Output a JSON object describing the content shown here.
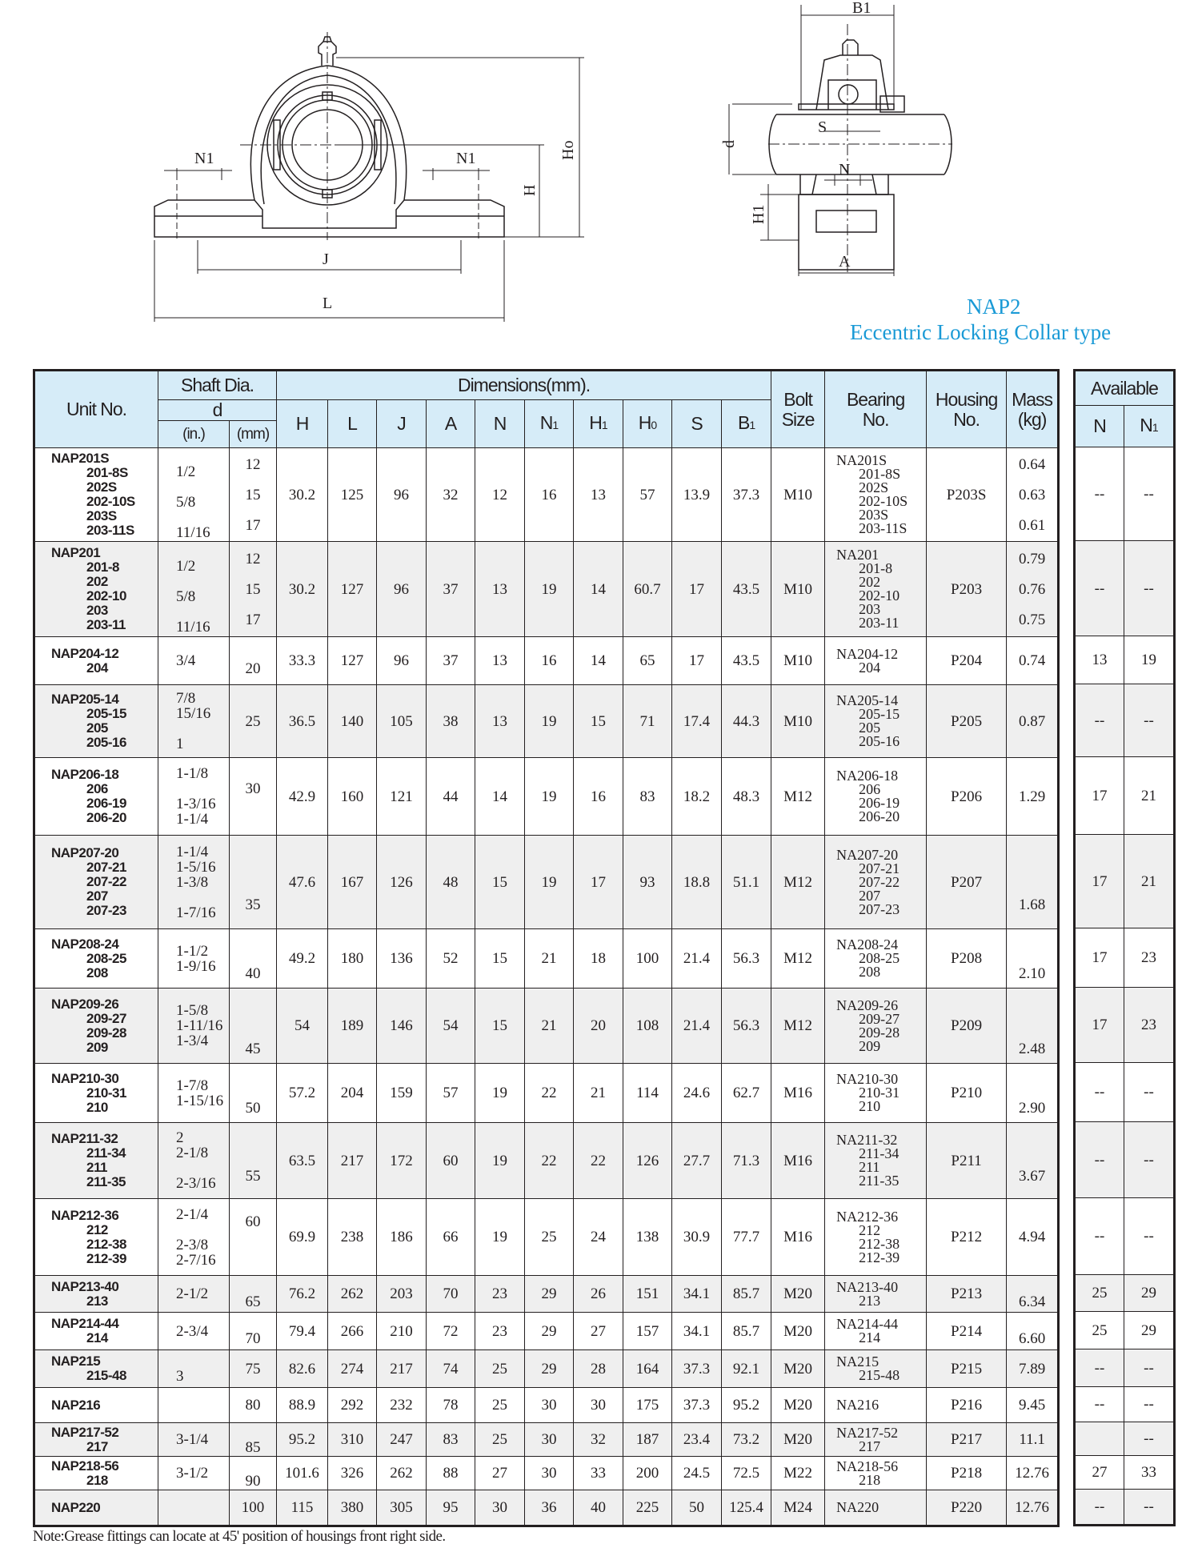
{
  "header": {
    "model": "NAP2",
    "subtitle": "Eccentric Locking Collar type"
  },
  "drawing_labels": {
    "front_n1_left": "N1",
    "front_n1_right": "N1",
    "front_h": "H",
    "front_ho": "Ho",
    "front_j": "J",
    "front_l": "L",
    "side_b1": "B1",
    "side_s": "S",
    "side_d": "d",
    "side_n": "N",
    "side_h1": "H1",
    "side_a": "A"
  },
  "table": {
    "headers": {
      "unit_no": "Unit No.",
      "shaft_dia": "Shaft Dia.",
      "d": "d",
      "in": "(in.)",
      "mm": "(mm)",
      "dimensions": "Dimensions(mm).",
      "H": "H",
      "L": "L",
      "J": "J",
      "A": "A",
      "N": "N",
      "N1": "N",
      "N1_sub": "1",
      "H1": "H",
      "H1_sub": "1",
      "H0": "H",
      "H0_sub": "0",
      "S": "S",
      "B1": "B",
      "B1_sub": "1",
      "bolt_size": "Bolt\nSize",
      "bearing_no": "Bearing\nNo.",
      "housing_no": "Housing\nNo.",
      "mass": "Mass\n(kg)",
      "available": "Available",
      "avail_n": "N",
      "avail_n1": "N",
      "avail_n1_sub": "1"
    },
    "rows": [
      {
        "unit": [
          "NAP201S",
          "201-8S",
          "202S",
          "202-10S",
          "203S",
          "203-11S"
        ],
        "inch": "\n1/2\n\n5/8\n\n11/16",
        "mm": "12\n\n15\n\n17",
        "H": "30.2",
        "L": "125",
        "J": "96",
        "A": "32",
        "N": "12",
        "N1": "16",
        "H1": "13",
        "H0": "57",
        "S": "13.9",
        "B1": "37.3",
        "bolt": "M10",
        "bearing": [
          "NA201S",
          "201-8S",
          "202S",
          "202-10S",
          "203S",
          "203-11S"
        ],
        "housing": "P203S",
        "mass": "0.64\n\n0.63\n\n0.61",
        "avail_n": "--",
        "avail_n1": "--"
      },
      {
        "unit": [
          "NAP201",
          "201-8",
          "202",
          "202-10",
          "203",
          "203-11"
        ],
        "inch": "\n1/2\n\n5/8\n\n11/16",
        "mm": "12\n\n15\n\n17",
        "H": "30.2",
        "L": "127",
        "J": "96",
        "A": "37",
        "N": "13",
        "N1": "19",
        "H1": "14",
        "H0": "60.7",
        "S": "17",
        "B1": "43.5",
        "bolt": "M10",
        "bearing": [
          "NA201",
          "201-8",
          "202",
          "202-10",
          "203",
          "203-11"
        ],
        "housing": "P203",
        "mass": "0.79\n\n0.76\n\n0.75",
        "avail_n": "--",
        "avail_n1": "--"
      },
      {
        "unit": [
          "NAP204-12",
          "204"
        ],
        "inch": "3/4\n",
        "mm": "\n20",
        "H": "33.3",
        "L": "127",
        "J": "96",
        "A": "37",
        "N": "13",
        "N1": "16",
        "H1": "14",
        "H0": "65",
        "S": "17",
        "B1": "43.5",
        "bolt": "M10",
        "bearing": [
          "NA204-12",
          "204"
        ],
        "housing": "P204",
        "mass": "0.74",
        "avail_n": "13",
        "avail_n1": "19"
      },
      {
        "unit": [
          "NAP205-14",
          "205-15",
          "205",
          "205-16"
        ],
        "inch": "7/8\n15/16\n\n1",
        "mm": "25",
        "H": "36.5",
        "L": "140",
        "J": "105",
        "A": "38",
        "N": "13",
        "N1": "19",
        "H1": "15",
        "H0": "71",
        "S": "17.4",
        "B1": "44.3",
        "bolt": "M10",
        "bearing": [
          "NA205-14",
          "205-15",
          "205",
          "205-16"
        ],
        "housing": "P205",
        "mass": "0.87",
        "avail_n": "--",
        "avail_n1": "--"
      },
      {
        "unit": [
          "NAP206-18",
          "206",
          "206-19",
          "206-20"
        ],
        "inch": "1-1/8\n\n1-3/16\n1-1/4",
        "mm": "30\n\n",
        "H": "42.9",
        "L": "160",
        "J": "121",
        "A": "44",
        "N": "14",
        "N1": "19",
        "H1": "16",
        "H0": "83",
        "S": "18.2",
        "B1": "48.3",
        "bolt": "M12",
        "bearing": [
          "NA206-18",
          "206",
          "206-19",
          "206-20"
        ],
        "housing": "P206",
        "mass": "1.29\n",
        "avail_n": "17",
        "avail_n1": "21"
      },
      {
        "unit": [
          "NAP207-20",
          "207-21",
          "207-22",
          "207",
          "207-23"
        ],
        "inch": "1-1/4\n1-5/16\n1-3/8\n\n1-7/16",
        "mm": "\n\n\n35\n",
        "H": "47.6",
        "L": "167",
        "J": "126",
        "A": "48",
        "N": "15",
        "N1": "19",
        "H1": "17",
        "H0": "93",
        "S": "18.8",
        "B1": "51.1",
        "bolt": "M12",
        "bearing": [
          "NA207-20",
          "207-21",
          "207-22",
          "207",
          "207-23"
        ],
        "housing": "P207",
        "mass": "\n\n\n1.68\n",
        "avail_n": "17",
        "avail_n1": "21"
      },
      {
        "unit": [
          "NAP208-24",
          "208-25",
          "208"
        ],
        "inch": "1-1/2\n1-9/16\n",
        "mm": "\n\n40",
        "H": "49.2",
        "L": "180",
        "J": "136",
        "A": "52",
        "N": "15",
        "N1": "21",
        "H1": "18",
        "H0": "100",
        "S": "21.4",
        "B1": "56.3",
        "bolt": "M12",
        "bearing": [
          "NA208-24",
          "208-25",
          "208"
        ],
        "housing": "P208",
        "mass": "\n\n2.10",
        "avail_n": "17",
        "avail_n1": "23"
      },
      {
        "unit": [
          "NAP209-26",
          "209-27",
          "209-28",
          "209"
        ],
        "inch": "1-5/8\n1-11/16\n1-3/4\n",
        "mm": "\n\n\n45",
        "H": "54",
        "L": "189",
        "J": "146",
        "A": "54",
        "N": "15",
        "N1": "21",
        "H1": "20",
        "H0": "108",
        "S": "21.4",
        "B1": "56.3",
        "bolt": "M12",
        "bearing": [
          "NA209-26",
          "209-27",
          "209-28",
          "209"
        ],
        "housing": "P209",
        "mass": "\n\n\n2.48",
        "avail_n": "17",
        "avail_n1": "23"
      },
      {
        "unit": [
          "NAP210-30",
          "210-31",
          "210"
        ],
        "inch": "1-7/8\n1-15/16\n",
        "mm": "\n\n50",
        "H": "57.2",
        "L": "204",
        "J": "159",
        "A": "57",
        "N": "19",
        "N1": "22",
        "H1": "21",
        "H0": "114",
        "S": "24.6",
        "B1": "62.7",
        "bolt": "M16",
        "bearing": [
          "NA210-30",
          "210-31",
          "210"
        ],
        "housing": "P210",
        "mass": "\n\n2.90",
        "avail_n": "--",
        "avail_n1": "--"
      },
      {
        "unit": [
          "NAP211-32",
          "211-34",
          "211",
          "211-35"
        ],
        "inch": "2\n2-1/8\n\n2-3/16",
        "mm": "\n\n55\n",
        "H": "63.5",
        "L": "217",
        "J": "172",
        "A": "60",
        "N": "19",
        "N1": "22",
        "H1": "22",
        "H0": "126",
        "S": "27.7",
        "B1": "71.3",
        "bolt": "M16",
        "bearing": [
          "NA211-32",
          "211-34",
          "211",
          "211-35"
        ],
        "housing": "P211",
        "mass": "\n\n3.67\n",
        "avail_n": "--",
        "avail_n1": "--"
      },
      {
        "unit": [
          "NAP212-36",
          "212",
          "212-38",
          "212-39"
        ],
        "inch": "2-1/4\n\n2-3/8\n2-7/16",
        "mm": "60\n\n\n",
        "H": "69.9",
        "L": "238",
        "J": "186",
        "A": "66",
        "N": "19",
        "N1": "25",
        "H1": "24",
        "H0": "138",
        "S": "30.9",
        "B1": "77.7",
        "bolt": "M16",
        "bearing": [
          "NA212-36",
          "212",
          "212-38",
          "212-39"
        ],
        "housing": "P212",
        "mass": "4.94",
        "avail_n": "--",
        "avail_n1": "--"
      },
      {
        "unit": [
          "NAP213-40",
          "213"
        ],
        "inch": "2-1/2\n",
        "mm": "\n65",
        "H": "76.2",
        "L": "262",
        "J": "203",
        "A": "70",
        "N": "23",
        "N1": "29",
        "H1": "26",
        "H0": "151",
        "S": "34.1",
        "B1": "85.7",
        "bolt": "M20",
        "bearing": [
          "NA213-40",
          "213"
        ],
        "housing": "P213",
        "mass": "\n6.34",
        "avail_n": "25",
        "avail_n1": "29"
      },
      {
        "unit": [
          "NAP214-44",
          "214"
        ],
        "inch": "2-3/4\n",
        "mm": "\n70",
        "H": "79.4",
        "L": "266",
        "J": "210",
        "A": "72",
        "N": "23",
        "N1": "29",
        "H1": "27",
        "H0": "157",
        "S": "34.1",
        "B1": "85.7",
        "bolt": "M20",
        "bearing": [
          "NA214-44",
          "214"
        ],
        "housing": "P214",
        "mass": "\n6.60",
        "avail_n": "25",
        "avail_n1": "29"
      },
      {
        "unit": [
          "NAP215",
          "215-48"
        ],
        "inch": "\n3",
        "mm": "75\n",
        "H": "82.6",
        "L": "274",
        "J": "217",
        "A": "74",
        "N": "25",
        "N1": "29",
        "H1": "28",
        "H0": "164",
        "S": "37.3",
        "B1": "92.1",
        "bolt": "M20",
        "bearing": [
          "NA215",
          "215-48"
        ],
        "housing": "P215",
        "mass": "7.89",
        "avail_n": "--",
        "avail_n1": "--"
      },
      {
        "unit": [
          "NAP216"
        ],
        "inch": "",
        "mm": "80",
        "H": "88.9",
        "L": "292",
        "J": "232",
        "A": "78",
        "N": "25",
        "N1": "30",
        "H1": "30",
        "H0": "175",
        "S": "37.3",
        "B1": "95.2",
        "bolt": "M20",
        "bearing": [
          "NA216"
        ],
        "housing": "P216",
        "mass": "9.45",
        "avail_n": "--",
        "avail_n1": "--"
      },
      {
        "unit": [
          "NAP217-52",
          "217"
        ],
        "inch": "3-1/4\n",
        "mm": "\n85",
        "H": "95.2",
        "L": "310",
        "J": "247",
        "A": "83",
        "N": "25",
        "N1": "30",
        "H1": "32",
        "H0": "187",
        "S": "23.4",
        "B1": "73.2",
        "bolt": "M20",
        "bearing": [
          "NA217-52",
          "217"
        ],
        "housing": "P217",
        "mass": "11.1",
        "avail_n": "",
        "avail_n1": "--"
      },
      {
        "unit": [
          "NAP218-56",
          "218"
        ],
        "inch": "3-1/2\n",
        "mm": "\n90",
        "H": "101.6",
        "L": "326",
        "J": "262",
        "A": "88",
        "N": "27",
        "N1": "30",
        "H1": "33",
        "H0": "200",
        "S": "24.5",
        "B1": "72.5",
        "bolt": "M22",
        "bearing": [
          "NA218-56",
          "218"
        ],
        "housing": "P218",
        "mass": "12.76",
        "avail_n": "27",
        "avail_n1": "33"
      },
      {
        "unit": [
          "NAP220"
        ],
        "inch": "",
        "mm": "100",
        "H": "115",
        "L": "380",
        "J": "305",
        "A": "95",
        "N": "30",
        "N1": "36",
        "H1": "40",
        "H0": "225",
        "S": "50",
        "B1": "125.4",
        "bolt": "M24",
        "bearing": [
          "NA220"
        ],
        "housing": "P220",
        "mass": "12.76",
        "avail_n": "--",
        "avail_n1": "--"
      }
    ]
  },
  "note": "Note:Grease fittings can locate at 45' position of housings front right side.",
  "colors": {
    "title": "#1a9ad6",
    "header_bg": "#d6ecf8",
    "alt_row_bg": "#efefef",
    "line": "#231f20"
  }
}
